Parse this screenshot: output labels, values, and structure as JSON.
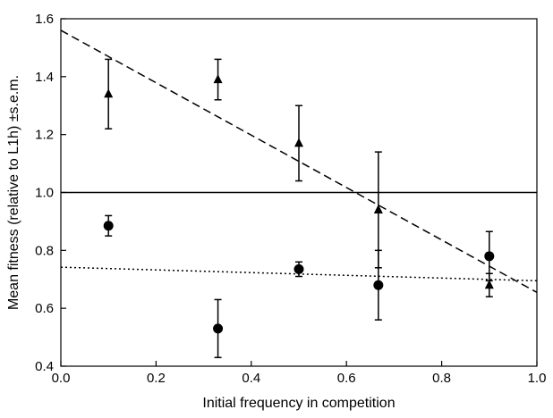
{
  "chart_data": {
    "type": "scatter",
    "title": "",
    "xlabel": "Initial frequency in competition",
    "ylabel": "Mean fitness (relative to L1h) ±s.e.m.",
    "xlim": [
      0.0,
      1.0
    ],
    "ylim": [
      0.4,
      1.6
    ],
    "x_ticks": [
      0.0,
      0.2,
      0.4,
      0.6,
      0.8,
      1.0
    ],
    "x_tick_labels": [
      "0.0",
      "0.2",
      "0.4",
      "0.6",
      "0.8",
      "1.0"
    ],
    "y_ticks": [
      0.4,
      0.6,
      0.8,
      1.0,
      1.2,
      1.4,
      1.6
    ],
    "y_tick_labels": [
      "0.4",
      "0.6",
      "0.8",
      "1.0",
      "1.2",
      "1.4",
      "1.6"
    ],
    "grid": false,
    "legend": "none",
    "series": [
      {
        "marker": "triangle",
        "color": "#000000",
        "points": [
          {
            "x": 0.1,
            "y": 1.34,
            "err": 0.12
          },
          {
            "x": 0.33,
            "y": 1.39,
            "err": 0.07
          },
          {
            "x": 0.5,
            "y": 1.17,
            "err": 0.13
          },
          {
            "x": 0.667,
            "y": 0.94,
            "err": 0.2
          },
          {
            "x": 0.9,
            "y": 0.68,
            "err": 0.04
          }
        ]
      },
      {
        "marker": "circle",
        "color": "#000000",
        "points": [
          {
            "x": 0.1,
            "y": 0.885,
            "err": 0.035
          },
          {
            "x": 0.33,
            "y": 0.53,
            "err": 0.1
          },
          {
            "x": 0.5,
            "y": 0.735,
            "err": 0.025
          },
          {
            "x": 0.667,
            "y": 0.68,
            "err": 0.12
          },
          {
            "x": 0.9,
            "y": 0.78,
            "err": 0.085
          }
        ]
      }
    ],
    "lines": [
      {
        "style": "solid",
        "color": "#000000",
        "x": [
          0.0,
          1.0
        ],
        "y": [
          1.0,
          1.0
        ]
      },
      {
        "style": "dashed",
        "color": "#000000",
        "x": [
          0.0,
          1.0
        ],
        "y": [
          1.56,
          0.655
        ]
      },
      {
        "style": "dotted",
        "color": "#000000",
        "x": [
          0.0,
          1.0
        ],
        "y": [
          0.742,
          0.695
        ]
      }
    ]
  }
}
